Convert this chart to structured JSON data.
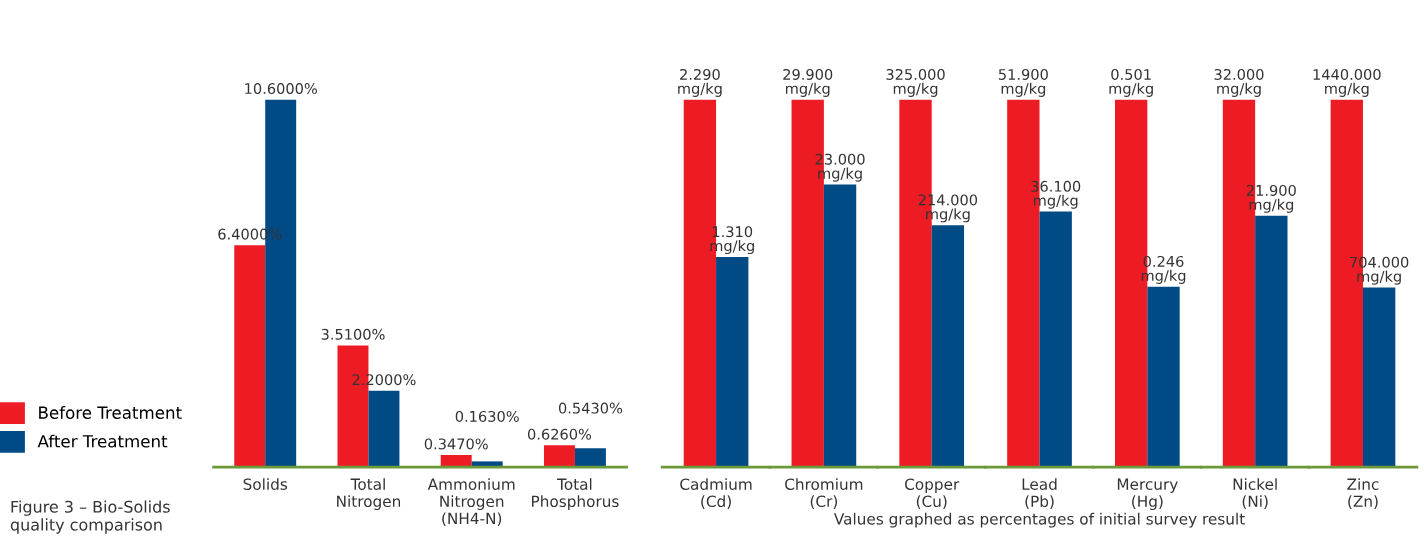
{
  "chart_data": [
    {
      "type": "bar",
      "categories": [
        "Solids",
        "Total\nNitrogen",
        "Ammonium\nNitrogen\n(NH4-N)",
        "Total\nPhosphorus"
      ],
      "series": [
        {
          "name": "Before Treatment",
          "color": "#ed1c24",
          "values": [
            6.4,
            3.51,
            0.347,
            0.626
          ],
          "value_labels": [
            "6.4000%",
            "3.5100%",
            "0.3470%",
            "0.6260%"
          ]
        },
        {
          "name": "After Treatment",
          "color": "#004b85",
          "values": [
            10.6,
            2.2,
            0.163,
            0.543
          ],
          "value_labels": [
            "10.6000%",
            "2.2000%",
            "0.1630%",
            "0.5430%"
          ]
        }
      ],
      "legend": "bottom left",
      "tick_labels": "x",
      "annotations": [
        "Figure 3 – Bio-Solids\nquality comparison"
      ]
    },
    {
      "type": "bar",
      "categories": [
        "Cadmium\n(Cd)"
      ],
      "tick_labels": "x",
      "series": [
        {
          "color": "#ed1c24",
          "values": [
            2.29
          ],
          "value_labels": [
            "2.290\nmg/kg"
          ]
        },
        {
          "color": "#004b85",
          "values": [
            1.31
          ],
          "value_labels": [
            "1.310\nmg/kg"
          ]
        }
      ]
    },
    {
      "type": "bar",
      "categories": [
        "Chromium\n(Cr)"
      ],
      "tick_labels": "x",
      "series": [
        {
          "color": "#ed1c24",
          "values": [
            29.9
          ],
          "value_labels": [
            "29.900\nmg/kg"
          ]
        },
        {
          "color": "#004b85",
          "values": [
            23.0
          ],
          "value_labels": [
            "23.000\nmg/kg"
          ]
        }
      ]
    },
    {
      "type": "bar",
      "categories": [
        "Copper\n(Cu)"
      ],
      "tick_labels": "x",
      "series": [
        {
          "color": "#ed1c24",
          "values": [
            325.0
          ],
          "value_labels": [
            "325.000\nmg/kg"
          ]
        },
        {
          "color": "#004b85",
          "values": [
            214.0
          ],
          "value_labels": [
            "214.000\nmg/kg"
          ]
        }
      ]
    },
    {
      "type": "bar",
      "categories": [
        "Lead\n(Pb)"
      ],
      "tick_labels": "x",
      "xlabel": "Values graphed as percentages of initial survey result",
      "series": [
        {
          "color": "#ed1c24",
          "values": [
            51.9
          ],
          "value_labels": [
            "51.900\nmg/kg"
          ]
        },
        {
          "color": "#004b85",
          "values": [
            36.1
          ],
          "value_labels": [
            "36.100\nmg/kg"
          ]
        }
      ]
    },
    {
      "type": "bar",
      "categories": [
        "Mercury\n(Hg)"
      ],
      "tick_labels": "x",
      "series": [
        {
          "color": "#ed1c24",
          "values": [
            0.501
          ],
          "value_labels": [
            "0.501\nmg/kg"
          ]
        },
        {
          "color": "#004b85",
          "values": [
            0.246
          ],
          "value_labels": [
            "0.246\nmg/kg"
          ]
        }
      ]
    },
    {
      "type": "bar",
      "categories": [
        "Nickel\n(Ni)"
      ],
      "tick_labels": "x",
      "series": [
        {
          "color": "#ed1c24",
          "values": [
            32.0
          ],
          "value_labels": [
            "32.000\nmg/kg"
          ]
        },
        {
          "color": "#004b85",
          "values": [
            21.9
          ],
          "value_labels": [
            "21.900\nmg/kg"
          ]
        }
      ]
    },
    {
      "type": "bar",
      "categories": [
        "Zinc\n(Zn)"
      ],
      "tick_labels": "x",
      "series": [
        {
          "color": "#ed1c24",
          "values": [
            1440.0
          ],
          "value_labels": [
            "1440.000\nmg/kg"
          ]
        },
        {
          "color": "#004b85",
          "values": [
            704.0
          ],
          "value_labels": [
            "704.000\nmg/kg"
          ]
        }
      ]
    }
  ]
}
